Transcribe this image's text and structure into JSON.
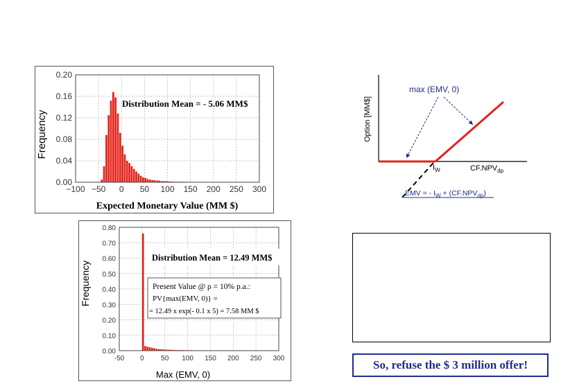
{
  "chart_data": [
    {
      "type": "bar",
      "xlabel": "Expected Monetary Value (MM $)",
      "ylabel": "Frequency",
      "xlim": [
        -100,
        300
      ],
      "ylim": [
        0,
        0.2
      ],
      "xticks": [
        "−100",
        "−50",
        "0",
        "50",
        "100",
        "150",
        "200",
        "250",
        "300"
      ],
      "yticks": [
        "0.00",
        "0.04",
        "0.08",
        "0.12",
        "0.16",
        "0.20"
      ],
      "annotation": "Distribution Mean = - 5.06 MM$",
      "bin_width": 5,
      "x": [
        -45,
        -40,
        -35,
        -30,
        -25,
        -20,
        -15,
        -10,
        -5,
        0,
        5,
        10,
        15,
        20,
        25,
        30,
        35,
        40,
        45,
        50,
        55,
        60,
        65,
        70,
        75,
        80,
        85,
        90,
        95,
        100,
        105,
        110,
        115,
        120,
        125,
        130,
        135,
        140,
        145,
        150,
        155,
        160,
        165,
        170,
        175,
        180,
        185,
        190,
        195,
        200,
        205,
        210,
        215,
        220,
        225,
        230,
        235,
        240,
        245,
        250
      ],
      "values": [
        0.005,
        0.03,
        0.088,
        0.125,
        0.152,
        0.168,
        0.158,
        0.128,
        0.092,
        0.068,
        0.052,
        0.04,
        0.036,
        0.03,
        0.025,
        0.02,
        0.016,
        0.012,
        0.009,
        0.008,
        0.006,
        0.005,
        0.004,
        0.004,
        0.003,
        0.003,
        0.002,
        0.002,
        0.002,
        0.0015,
        0.0015,
        0.001,
        0.001,
        0.001,
        0.001,
        0.001,
        0.0008,
        0.0008,
        0.0006,
        0.0006,
        0.0005,
        0.0005,
        0.0004,
        0.0004,
        0.0003,
        0.0003,
        0.0003,
        0.0002,
        0.0002,
        0.0002,
        0.0002,
        0.0002,
        0.0001,
        0.0001,
        0.0001,
        0.0001,
        0.0001,
        0.0001,
        0.0001,
        0.0001
      ]
    },
    {
      "type": "bar",
      "xlabel": "Max (EMV, 0)",
      "ylabel": "Frequency",
      "xlim": [
        -50,
        300
      ],
      "ylim": [
        0,
        0.8
      ],
      "xticks": [
        "-50",
        "0",
        "50",
        "100",
        "150",
        "200",
        "250",
        "300"
      ],
      "yticks": [
        "0.00",
        "0.10",
        "0.20",
        "0.30",
        "0.40",
        "0.50",
        "0.60",
        "0.70",
        "0.80"
      ],
      "annotation": "Distribution Mean = 12.49 MM$",
      "bin_width": 5,
      "x": [
        0,
        5,
        10,
        15,
        20,
        25,
        30,
        35,
        40,
        45,
        50,
        55,
        60,
        65,
        70,
        75,
        80,
        85,
        90,
        95,
        100,
        105,
        110,
        115,
        120,
        125,
        130,
        135,
        140,
        145,
        150,
        155,
        160,
        165,
        170,
        175,
        180,
        185,
        190,
        195,
        200,
        205,
        210,
        215,
        220,
        225,
        230,
        235,
        240,
        245,
        250
      ],
      "values": [
        0.76,
        0.03,
        0.025,
        0.022,
        0.018,
        0.015,
        0.012,
        0.01,
        0.009,
        0.008,
        0.007,
        0.006,
        0.006,
        0.005,
        0.005,
        0.004,
        0.004,
        0.004,
        0.003,
        0.003,
        0.003,
        0.003,
        0.002,
        0.002,
        0.002,
        0.002,
        0.002,
        0.002,
        0.002,
        0.002,
        0.002,
        0.0015,
        0.0015,
        0.0015,
        0.0015,
        0.0015,
        0.0015,
        0.001,
        0.001,
        0.001,
        0.001,
        0.001,
        0.001,
        0.001,
        0.001,
        0.001,
        0.001,
        0.001,
        0.001,
        0.001,
        0.001
      ]
    }
  ],
  "pv_box": {
    "line1": "Present Value @ ρ = 10% p.a.:",
    "line2": "PV{max(EMV, 0)} =",
    "line3": "= 12.49 x exp(- 0.1 x 5) = 7.58 MM $"
  },
  "option_diagram": {
    "y_label": "Option [MM$]",
    "curve_label": "max (EMV, 0)",
    "iw_label": "I",
    "iw_sub": "W",
    "x_axis_label": "CF.NPV",
    "x_axis_sub": "dp",
    "emv_eq": "EMV = - I",
    "emv_eq_sub": "W",
    "emv_eq_rest": " + (CF.NPV",
    "emv_eq_sub2": "dp",
    "emv_eq_end": ")",
    "colors": {
      "payoff": "#e32219",
      "annotation": "#1f2d8a",
      "axis": "#000000"
    }
  },
  "footer": {
    "text": "So, refuse the $ 3 million offer!"
  },
  "colors": {
    "bar": "#e32219",
    "bar_edge": "#ffffff",
    "grid": "#b0b0b0"
  }
}
